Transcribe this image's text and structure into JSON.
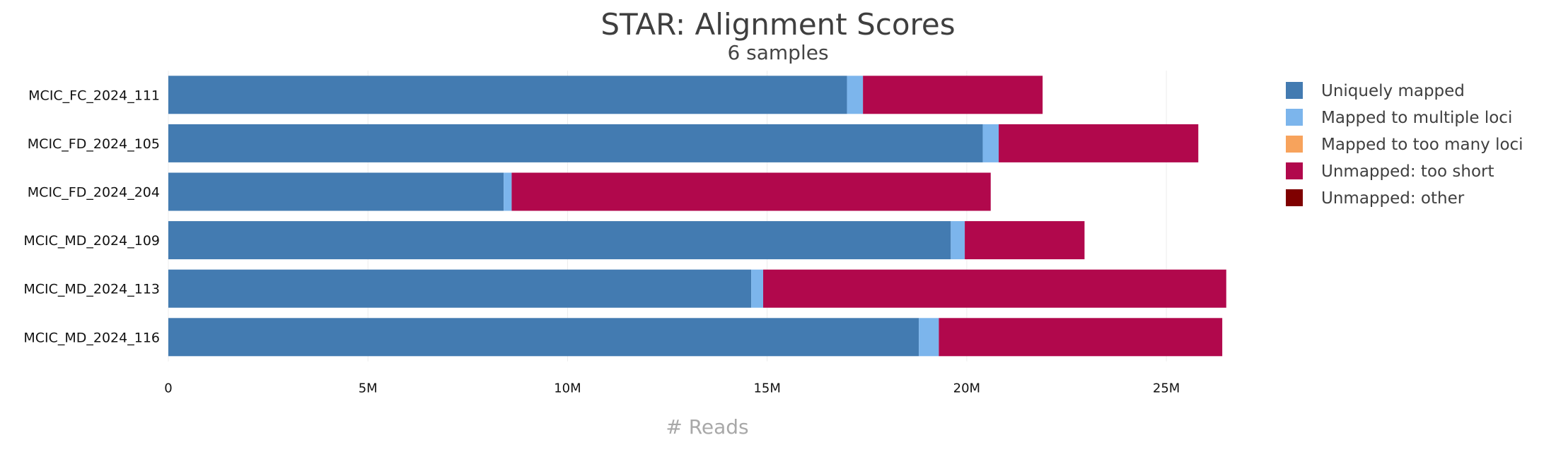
{
  "chart_data": {
    "type": "bar",
    "orientation": "horizontal",
    "stacked": true,
    "title": "STAR: Alignment Scores",
    "subtitle": "6 samples",
    "xlabel": "# Reads",
    "xlim": [
      0,
      27000000
    ],
    "xticks": [
      0,
      5000000,
      10000000,
      15000000,
      20000000,
      25000000
    ],
    "xtick_labels": [
      "0",
      "5M",
      "10M",
      "15M",
      "20M",
      "25M"
    ],
    "grid": true,
    "legend_position": "right",
    "categories": [
      "MCIC_FC_2024_111",
      "MCIC_FD_2024_105",
      "MCIC_FD_2024_204",
      "MCIC_MD_2024_109",
      "MCIC_MD_2024_113",
      "MCIC_MD_2024_116"
    ],
    "series": [
      {
        "name": "Uniquely mapped",
        "color": "#437bb1",
        "values": [
          17000000,
          20400000,
          8400000,
          19600000,
          14600000,
          18800000
        ]
      },
      {
        "name": "Mapped to multiple loci",
        "color": "#7cb5ec",
        "values": [
          400000,
          400000,
          200000,
          350000,
          300000,
          500000
        ]
      },
      {
        "name": "Mapped to too many loci",
        "color": "#f7a35c",
        "values": [
          0,
          0,
          0,
          0,
          0,
          0
        ]
      },
      {
        "name": "Unmapped: too short",
        "color": "#b1084c",
        "values": [
          4500000,
          5000000,
          12000000,
          3000000,
          11600000,
          7100000
        ]
      },
      {
        "name": "Unmapped: other",
        "color": "#7f0000",
        "values": [
          0,
          0,
          0,
          0,
          0,
          0
        ]
      }
    ]
  }
}
